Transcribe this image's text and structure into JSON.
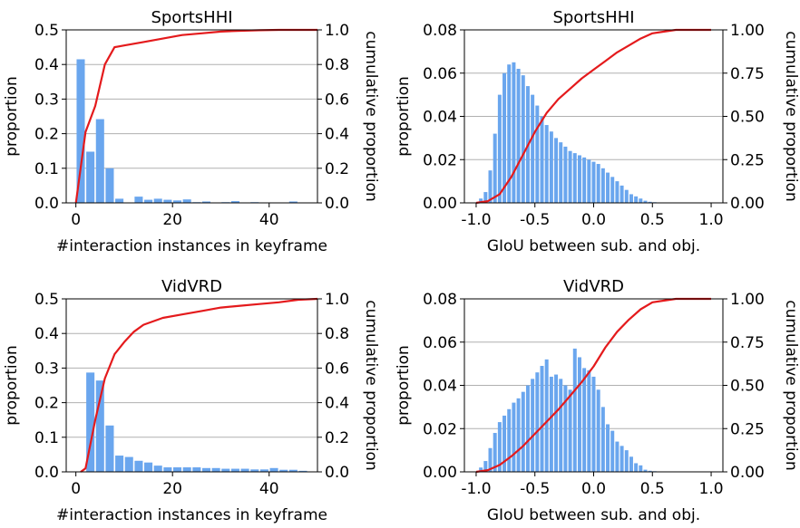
{
  "colors": {
    "bar": "#6aa6ee",
    "cdf": "#e41a1c",
    "grid": "#b0b0b0",
    "axis": "#000000"
  },
  "chart_data": [
    {
      "type": "bar",
      "title": "SportsHHI",
      "xlabel": "#interaction instances in keyframe",
      "ylabel": "proportion",
      "ylabel_right": "cumulative proportion",
      "xlim": [
        -2,
        50
      ],
      "ylim": [
        0,
        0.5
      ],
      "ylim_right": [
        0,
        1.0
      ],
      "xticks": [
        0,
        20,
        40
      ],
      "xtick_labels": [
        "0",
        "20",
        "40"
      ],
      "yticks": [
        0,
        0.1,
        0.2,
        0.3,
        0.4,
        0.5
      ],
      "ytick_labels": [
        "0.0",
        "0.1",
        "0.2",
        "0.3",
        "0.4",
        "0.5"
      ],
      "yticks_right": [
        0,
        0.2,
        0.4,
        0.6,
        0.8,
        1.0
      ],
      "ytick_labels_right": [
        "0.0",
        "0.2",
        "0.4",
        "0.6",
        "0.8",
        "1.0"
      ],
      "grid": "y",
      "bin_width": 1.7,
      "bins": [
        1,
        3,
        5,
        7,
        9,
        11,
        13,
        15,
        17,
        19,
        21,
        23,
        25,
        27,
        29,
        31,
        33,
        35,
        37,
        39,
        41,
        43,
        45,
        47
      ],
      "values": [
        0.415,
        0.148,
        0.242,
        0.1,
        0.012,
        0.001,
        0.018,
        0.009,
        0.012,
        0.009,
        0.007,
        0.01,
        0.002,
        0.004,
        0.001,
        0.002,
        0.005,
        0.001,
        0.002,
        0.001,
        0.001,
        0.001,
        0.004,
        0.001
      ],
      "cdf": {
        "x": [
          0,
          2,
          4,
          6,
          8,
          10,
          14,
          18,
          22,
          26,
          30,
          34,
          38,
          42,
          46,
          50
        ],
        "y": [
          0,
          0.41,
          0.56,
          0.8,
          0.9,
          0.91,
          0.93,
          0.95,
          0.97,
          0.98,
          0.99,
          0.995,
          0.998,
          1.0,
          1.0,
          1.0
        ]
      }
    },
    {
      "type": "bar",
      "title": "SportsHHI",
      "xlabel": "GIoU between sub. and obj.",
      "ylabel": "proportion",
      "ylabel_right": "cumulative proportion",
      "xlim": [
        -1.1,
        1.1
      ],
      "ylim": [
        0,
        0.08
      ],
      "ylim_right": [
        0,
        1.0
      ],
      "xticks": [
        -1.0,
        -0.5,
        0.0,
        0.5,
        1.0
      ],
      "xtick_labels": [
        "-1.0",
        "-0.5",
        "0.0",
        "0.5",
        "1.0"
      ],
      "yticks": [
        0,
        0.02,
        0.04,
        0.06,
        0.08
      ],
      "ytick_labels": [
        "0.00",
        "0.02",
        "0.04",
        "0.06",
        "0.08"
      ],
      "yticks_right": [
        0,
        0.25,
        0.5,
        0.75,
        1.0
      ],
      "ytick_labels_right": [
        "0.00",
        "0.25",
        "0.50",
        "0.75",
        "1.00"
      ],
      "grid": "y",
      "bin_width": 0.04,
      "bin_start": -0.98,
      "values": [
        0.002,
        0.005,
        0.015,
        0.032,
        0.05,
        0.06,
        0.064,
        0.065,
        0.062,
        0.059,
        0.054,
        0.05,
        0.045,
        0.04,
        0.036,
        0.033,
        0.03,
        0.028,
        0.026,
        0.024,
        0.023,
        0.022,
        0.021,
        0.02,
        0.019,
        0.018,
        0.016,
        0.014,
        0.012,
        0.01,
        0.008,
        0.006,
        0.004,
        0.003,
        0.002,
        0.001,
        0.0005,
        0.0003,
        0.0001,
        0.0001
      ],
      "cdf": {
        "x": [
          -1.0,
          -0.9,
          -0.8,
          -0.7,
          -0.6,
          -0.5,
          -0.4,
          -0.3,
          -0.2,
          -0.1,
          0.0,
          0.1,
          0.2,
          0.3,
          0.4,
          0.5,
          0.6,
          0.7,
          0.8,
          0.9,
          1.0
        ],
        "y": [
          0,
          0.01,
          0.05,
          0.15,
          0.28,
          0.41,
          0.52,
          0.6,
          0.66,
          0.72,
          0.77,
          0.82,
          0.87,
          0.91,
          0.95,
          0.98,
          0.99,
          1.0,
          1.0,
          1.0,
          1.0
        ]
      }
    },
    {
      "type": "bar",
      "title": "VidVRD",
      "xlabel": "#interaction instances in keyframe",
      "ylabel": "proportion",
      "ylabel_right": "cumulative proportion",
      "xlim": [
        -2,
        50
      ],
      "ylim": [
        0,
        0.5
      ],
      "ylim_right": [
        0,
        1.0
      ],
      "xticks": [
        0,
        20,
        40
      ],
      "xtick_labels": [
        "0",
        "20",
        "40"
      ],
      "yticks": [
        0,
        0.1,
        0.2,
        0.3,
        0.4,
        0.5
      ],
      "ytick_labels": [
        "0.0",
        "0.1",
        "0.2",
        "0.3",
        "0.4",
        "0.5"
      ],
      "yticks_right": [
        0,
        0.2,
        0.4,
        0.6,
        0.8,
        1.0
      ],
      "ytick_labels_right": [
        "0.0",
        "0.2",
        "0.4",
        "0.6",
        "0.8",
        "1.0"
      ],
      "grid": "y",
      "bin_width": 1.7,
      "bins": [
        3,
        5,
        7,
        9,
        11,
        13,
        15,
        17,
        19,
        21,
        23,
        25,
        27,
        29,
        31,
        33,
        35,
        37,
        39,
        41,
        43,
        45,
        47
      ],
      "values": [
        0.287,
        0.264,
        0.134,
        0.047,
        0.043,
        0.032,
        0.027,
        0.018,
        0.013,
        0.013,
        0.013,
        0.013,
        0.011,
        0.011,
        0.009,
        0.009,
        0.009,
        0.007,
        0.007,
        0.011,
        0.006,
        0.006,
        0.003
      ],
      "cdf": {
        "x": [
          1,
          2,
          4,
          6,
          8,
          10,
          12,
          14,
          18,
          22,
          26,
          30,
          34,
          38,
          42,
          46,
          50
        ],
        "y": [
          0,
          0.02,
          0.3,
          0.54,
          0.68,
          0.75,
          0.81,
          0.85,
          0.89,
          0.91,
          0.93,
          0.95,
          0.96,
          0.97,
          0.98,
          0.995,
          1.0
        ]
      }
    },
    {
      "type": "bar",
      "title": "VidVRD",
      "xlabel": "GIoU between sub. and obj.",
      "ylabel": "proportion",
      "ylabel_right": "cumulative proportion",
      "xlim": [
        -1.1,
        1.1
      ],
      "ylim": [
        0,
        0.08
      ],
      "ylim_right": [
        0,
        1.0
      ],
      "xticks": [
        -1.0,
        -0.5,
        0.0,
        0.5,
        1.0
      ],
      "xtick_labels": [
        "-1.0",
        "-0.5",
        "0.0",
        "0.5",
        "1.0"
      ],
      "yticks": [
        0,
        0.02,
        0.04,
        0.06,
        0.08
      ],
      "ytick_labels": [
        "0.00",
        "0.02",
        "0.04",
        "0.06",
        "0.08"
      ],
      "yticks_right": [
        0,
        0.25,
        0.5,
        0.75,
        1.0
      ],
      "ytick_labels_right": [
        "0.00",
        "0.25",
        "0.50",
        "0.75",
        "1.00"
      ],
      "grid": "y",
      "bin_width": 0.04,
      "bin_start": -0.98,
      "values": [
        0.002,
        0.005,
        0.011,
        0.018,
        0.023,
        0.026,
        0.029,
        0.032,
        0.034,
        0.037,
        0.04,
        0.043,
        0.046,
        0.049,
        0.052,
        0.044,
        0.045,
        0.043,
        0.04,
        0.038,
        0.057,
        0.053,
        0.048,
        0.047,
        0.044,
        0.038,
        0.03,
        0.022,
        0.019,
        0.014,
        0.012,
        0.01,
        0.007,
        0.004,
        0.003,
        0.001,
        0.0005,
        0.0003,
        0.0001,
        0.0001
      ],
      "cdf": {
        "x": [
          -1.0,
          -0.9,
          -0.8,
          -0.7,
          -0.6,
          -0.5,
          -0.4,
          -0.3,
          -0.2,
          -0.1,
          0.0,
          0.1,
          0.2,
          0.3,
          0.4,
          0.5,
          0.6,
          0.7,
          0.8,
          0.9,
          1.0
        ],
        "y": [
          0,
          0.01,
          0.04,
          0.09,
          0.15,
          0.22,
          0.29,
          0.36,
          0.44,
          0.52,
          0.61,
          0.72,
          0.81,
          0.88,
          0.94,
          0.98,
          0.99,
          1.0,
          1.0,
          1.0,
          1.0
        ]
      }
    }
  ]
}
